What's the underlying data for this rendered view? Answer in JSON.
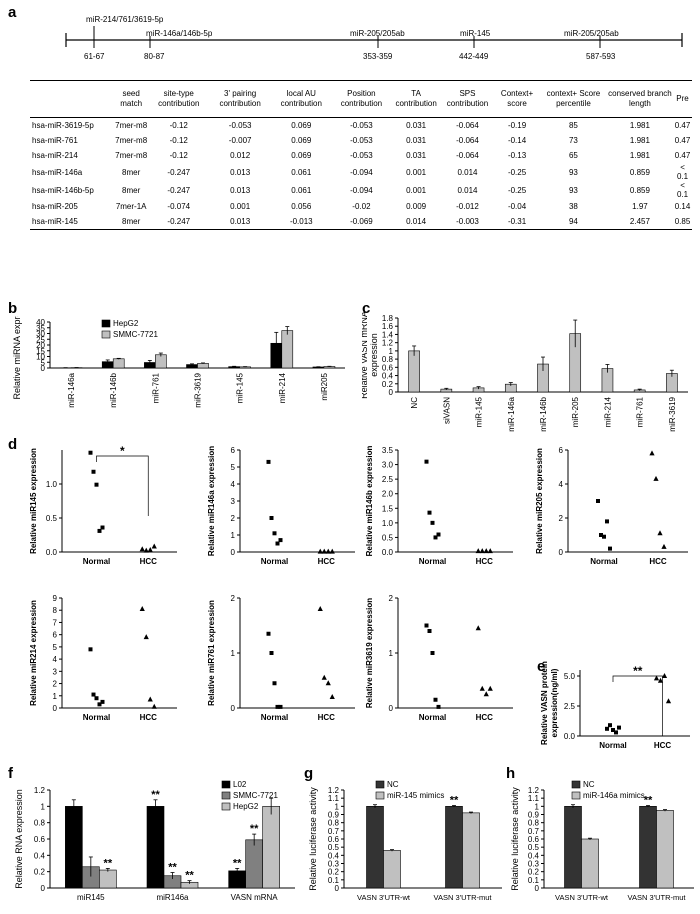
{
  "panels": {
    "a": "a",
    "b": "b",
    "c": "c",
    "d": "d",
    "e": "e",
    "f": "f",
    "g": "g",
    "h": "h"
  },
  "site_map": {
    "sites": [
      {
        "label": "miR-214/761/3619-5p",
        "position": "61-67"
      },
      {
        "label": "miR-146a/146b-5p",
        "position": "80-87"
      },
      {
        "label": "miR-205/205ab",
        "position": "353-359"
      },
      {
        "label": "miR-145",
        "position": "442-449"
      },
      {
        "label": "miR-205/205ab",
        "position": "587-593"
      }
    ]
  },
  "table": {
    "headers": [
      "",
      "seed match",
      "site-type contribution",
      "3' pairing contribution",
      "local AU contribution",
      "Position contribution",
      "TA contribution",
      "SPS contribution",
      "Context+ score",
      "context+ Score percentile",
      "conserved branch length",
      "Pre"
    ],
    "rows": [
      [
        "hsa-miR-3619-5p",
        "7mer-m8",
        "-0.12",
        "-0.053",
        "0.069",
        "-0.053",
        "0.031",
        "-0.064",
        "-0.19",
        "85",
        "1.981",
        "0.47"
      ],
      [
        "hsa-miR-761",
        "7mer-m8",
        "-0.12",
        "-0.007",
        "0.069",
        "-0.053",
        "0.031",
        "-0.064",
        "-0.14",
        "73",
        "1.981",
        "0.47"
      ],
      [
        "hsa-miR-214",
        "7mer-m8",
        "-0.12",
        "0.012",
        "0.069",
        "-0.053",
        "0.031",
        "-0.064",
        "-0.13",
        "65",
        "1.981",
        "0.47"
      ],
      [
        "hsa-miR-146a",
        "8mer",
        "-0.247",
        "0.013",
        "0.061",
        "-0.094",
        "0.001",
        "0.014",
        "-0.25",
        "93",
        "0.859",
        "< 0.1"
      ],
      [
        "hsa-miR-146b-5p",
        "8mer",
        "-0.247",
        "0.013",
        "0.061",
        "-0.094",
        "0.001",
        "0.014",
        "-0.25",
        "93",
        "0.859",
        "< 0.1"
      ],
      [
        "hsa-miR-205",
        "7mer-1A",
        "-0.074",
        "0.001",
        "0.056",
        "-0.02",
        "0.009",
        "-0.012",
        "-0.04",
        "38",
        "1.97",
        "0.14"
      ],
      [
        "hsa-miR-145",
        "8mer",
        "-0.247",
        "0.013",
        "-0.013",
        "-0.069",
        "0.014",
        "-0.003",
        "-0.31",
        "94",
        "2.457",
        "0.85"
      ]
    ]
  },
  "chart_data": [
    {
      "id": "b",
      "type": "bar",
      "categories": [
        "miR-146a",
        "miR-146b",
        "miR-761",
        "miR-3619",
        "miR-145",
        "miR-214",
        "miR205"
      ],
      "series": [
        {
          "name": "HepG2",
          "values": [
            0.2,
            5.5,
            4.8,
            3.0,
            1.2,
            21.5,
            0.9
          ],
          "errors": [
            0.1,
            1.5,
            1.8,
            0.6,
            0.3,
            9.5,
            0.2
          ],
          "color": "#000000"
        },
        {
          "name": "SMMC-7721",
          "values": [
            0.3,
            8.0,
            11.5,
            4.0,
            1.0,
            32.5,
            1.3
          ],
          "errors": [
            0.1,
            0.4,
            1.5,
            0.4,
            0.2,
            3.5,
            0.2
          ],
          "color": "#c0c0c0"
        }
      ],
      "ylabel": "Relative miRNA expression",
      "ylim": [
        0,
        40
      ],
      "yticks": [
        "0",
        "5",
        "10",
        "15",
        "20",
        "25",
        "30",
        "35",
        "40"
      ]
    },
    {
      "id": "c",
      "type": "bar",
      "categories": [
        "NC",
        "siVASN",
        "miR-145",
        "miR-146a",
        "miR-146b",
        "miR-205",
        "miR-214",
        "miR-761",
        "miR-3619"
      ],
      "series": [
        {
          "values": [
            1.0,
            0.07,
            0.1,
            0.19,
            0.68,
            1.42,
            0.57,
            0.05,
            0.45
          ],
          "errors": [
            0.12,
            0.02,
            0.03,
            0.04,
            0.17,
            0.33,
            0.1,
            0.02,
            0.08
          ],
          "color": "#c0c0c0"
        }
      ],
      "ylabel": "Relative VASN mRNA expression",
      "ylim": [
        0,
        1.8
      ],
      "yticks": [
        "0",
        "0.2",
        "0.4",
        "0.6",
        "0.8",
        "1",
        "1.2",
        "1.4",
        "1.6",
        "1.8"
      ]
    },
    {
      "id": "d1",
      "type": "scatter",
      "ylabel": "Relative miR145 expression",
      "ylim": [
        0,
        1.5
      ],
      "yticks": [
        "0.0",
        "0.5",
        "1.0"
      ],
      "ytickvals": [
        0,
        0.5,
        1.0
      ],
      "categories": [
        "Normal",
        "HCC"
      ],
      "normal": [
        1.46,
        1.18,
        0.99,
        0.31,
        0.36
      ],
      "hcc": [
        0.04,
        0.02,
        0.03,
        0.08
      ],
      "significance": "*"
    },
    {
      "id": "d2",
      "type": "scatter",
      "ylabel": "Relative miR146a expression",
      "ylim": [
        0,
        6
      ],
      "yticks": [
        "0",
        "1",
        "2",
        "3",
        "4",
        "5",
        "6"
      ],
      "ytickvals": [
        0,
        1,
        2,
        3,
        4,
        5,
        6
      ],
      "categories": [
        "Normal",
        "HCC"
      ],
      "normal": [
        5.3,
        2.0,
        1.1,
        0.5,
        0.7
      ],
      "hcc": [
        0.02,
        0.02,
        0.02,
        0.02
      ]
    },
    {
      "id": "d3",
      "type": "scatter",
      "ylabel": "Relative miR146b expression",
      "ylim": [
        0,
        3.5
      ],
      "yticks": [
        "0.0",
        "0.5",
        "1.0",
        "1.5",
        "2.0",
        "2.5",
        "3.0",
        "3.5"
      ],
      "ytickvals": [
        0,
        0.5,
        1,
        1.5,
        2,
        2.5,
        3,
        3.5
      ],
      "categories": [
        "Normal",
        "HCC"
      ],
      "normal": [
        3.1,
        1.35,
        1.0,
        0.5,
        0.6
      ],
      "hcc": [
        0.03,
        0.03,
        0.03,
        0.03
      ]
    },
    {
      "id": "d4",
      "type": "scatter",
      "ylabel": "Relative miR205 expression",
      "ylim": [
        0,
        6
      ],
      "yticks": [
        "0",
        "2",
        "4",
        "6"
      ],
      "ytickvals": [
        0,
        2,
        4,
        6
      ],
      "categories": [
        "Normal",
        "HCC"
      ],
      "normal": [
        3.0,
        1.0,
        0.9,
        1.8,
        0.2
      ],
      "hcc": [
        5.8,
        4.3,
        1.1,
        0.3
      ]
    },
    {
      "id": "d5",
      "type": "scatter",
      "ylabel": "Relative miR214 expression",
      "ylim": [
        0,
        9
      ],
      "yticks": [
        "0",
        "1",
        "2",
        "3",
        "4",
        "5",
        "6",
        "7",
        "8",
        "9"
      ],
      "ytickvals": [
        0,
        1,
        2,
        3,
        4,
        5,
        6,
        7,
        8,
        9
      ],
      "categories": [
        "Normal",
        "HCC"
      ],
      "normal": [
        4.8,
        1.1,
        0.8,
        0.3,
        0.5
      ],
      "hcc": [
        8.1,
        5.8,
        0.7,
        0.1
      ]
    },
    {
      "id": "d6",
      "type": "scatter",
      "ylabel": "Relative miR761 expression",
      "ylim": [
        0,
        2
      ],
      "yticks": [
        "0",
        "1",
        "2"
      ],
      "ytickvals": [
        0,
        1,
        2
      ],
      "categories": [
        "Normal",
        "HCC"
      ],
      "normal": [
        1.35,
        1.0,
        0.45,
        0.02,
        0.02
      ],
      "hcc": [
        1.8,
        0.55,
        0.45,
        0.2
      ]
    },
    {
      "id": "d7",
      "type": "scatter",
      "ylabel": "Relative miR3619 expression",
      "ylim": [
        0,
        2
      ],
      "yticks": [
        "0",
        "1",
        "2"
      ],
      "ytickvals": [
        0,
        1,
        2
      ],
      "categories": [
        "Normal",
        "HCC"
      ],
      "normal": [
        1.5,
        1.4,
        1.0,
        0.15,
        0.02
      ],
      "hcc": [
        1.45,
        0.35,
        0.25,
        0.35
      ]
    },
    {
      "id": "e",
      "type": "scatter",
      "ylabel": "Relative VASN protein expression(ng/ml)",
      "ylim": [
        0,
        5.5
      ],
      "yticks": [
        "0.0",
        "2.5",
        "5.0"
      ],
      "ytickvals": [
        0,
        2.5,
        5.0
      ],
      "categories": [
        "Normal",
        "HCC"
      ],
      "normal": [
        0.6,
        0.9,
        0.5,
        0.3,
        0.7
      ],
      "hcc": [
        4.8,
        4.6,
        5.0,
        2.9
      ],
      "significance": "**"
    },
    {
      "id": "f",
      "type": "bar",
      "categories": [
        "miR145",
        "miR146a",
        "VASN mRNA"
      ],
      "series": [
        {
          "name": "L02",
          "values": [
            1.0,
            1.0,
            0.21
          ],
          "errors": [
            0.08,
            0.08,
            0.03
          ],
          "color": "#000000"
        },
        {
          "name": "SMMC-7721",
          "values": [
            0.26,
            0.15,
            0.59
          ],
          "errors": [
            0.12,
            0.04,
            0.07
          ],
          "color": "#808080"
        },
        {
          "name": "HepG2",
          "values": [
            0.22,
            0.07,
            1.0
          ],
          "errors": [
            0.02,
            0.02,
            0.1
          ],
          "color": "#c0c0c0"
        }
      ],
      "stars": [
        [
          "",
          "**",
          "**"
        ],
        [
          "",
          "**",
          "**"
        ],
        [
          "**",
          "**",
          ""
        ]
      ],
      "ylabel": "Relative RNA expression",
      "ylim": [
        0,
        1.2
      ],
      "yticks": [
        "0",
        "0.2",
        "0.4",
        "0.6",
        "0.8",
        "1",
        "1.2"
      ]
    },
    {
      "id": "g",
      "type": "bar",
      "categories": [
        "VASN 3'UTR-wt",
        "VASN 3'UTR-mut"
      ],
      "series": [
        {
          "name": "NC",
          "values": [
            1.0,
            1.0
          ],
          "errors": [
            0.02,
            0.01
          ],
          "color": "#333333"
        },
        {
          "name": "miR-145 mimics",
          "values": [
            0.46,
            0.92
          ],
          "errors": [
            0.01,
            0.01
          ],
          "color": "#c0c0c0"
        }
      ],
      "stars": [
        [
          "",
          "**"
        ],
        [
          "",
          ""
        ]
      ],
      "ylabel": "Relative luciferase activity",
      "ylim": [
        0,
        1.2
      ],
      "yticks": [
        "0",
        "0.1",
        "0.2",
        "0.3",
        "0.4",
        "0.5",
        "0.6",
        "0.7",
        "0.8",
        "0.9",
        "1",
        "1.1",
        "1.2"
      ]
    },
    {
      "id": "h",
      "type": "bar",
      "categories": [
        "VASN 3'UTR-wt",
        "VASN 3'UTR-mut"
      ],
      "series": [
        {
          "name": "NC",
          "values": [
            1.0,
            1.0
          ],
          "errors": [
            0.02,
            0.01
          ],
          "color": "#333333"
        },
        {
          "name": "miR-146a mimics",
          "values": [
            0.6,
            0.95
          ],
          "errors": [
            0.01,
            0.01
          ],
          "color": "#c0c0c0"
        }
      ],
      "stars": [
        [
          "",
          "**"
        ],
        [
          "",
          ""
        ]
      ],
      "ylabel": "Relative luciferase activity",
      "ylim": [
        0,
        1.2
      ],
      "yticks": [
        "0",
        "0.1",
        "0.2",
        "0.3",
        "0.4",
        "0.5",
        "0.6",
        "0.7",
        "0.8",
        "0.9",
        "1",
        "1.1",
        "1.2"
      ]
    }
  ]
}
